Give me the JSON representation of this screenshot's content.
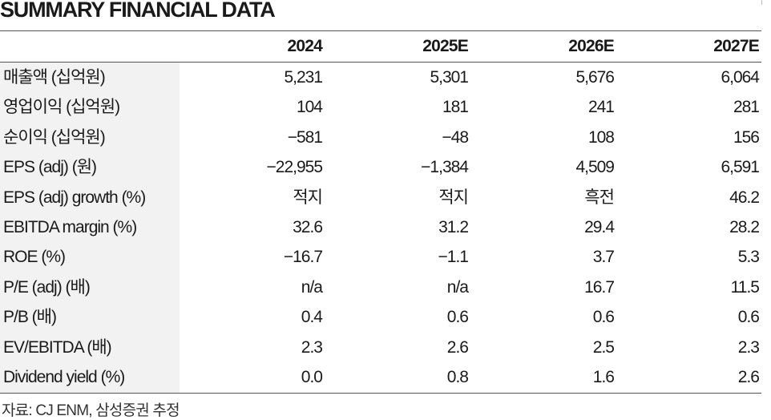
{
  "title": "SUMMARY FINANCIAL DATA",
  "columns": [
    "2024",
    "2025E",
    "2026E",
    "2027E"
  ],
  "rows": [
    {
      "label": "매출액 (십억원)",
      "values": [
        "5,231",
        "5,301",
        "5,676",
        "6,064"
      ]
    },
    {
      "label": "영업이익 (십억원)",
      "values": [
        "104",
        "181",
        "241",
        "281"
      ]
    },
    {
      "label": "순이익 (십억원)",
      "values": [
        "−581",
        "−48",
        "108",
        "156"
      ]
    },
    {
      "label": "EPS (adj) (원)",
      "values": [
        "−22,955",
        "−1,384",
        "4,509",
        "6,591"
      ]
    },
    {
      "label": "EPS (adj) growth (%)",
      "values": [
        "적지",
        "적지",
        "흑전",
        "46.2"
      ]
    },
    {
      "label": "EBITDA margin (%)",
      "values": [
        "32.6",
        "31.2",
        "29.4",
        "28.2"
      ]
    },
    {
      "label": "ROE (%)",
      "values": [
        "−16.7",
        "−1.1",
        "3.7",
        "5.3"
      ]
    },
    {
      "label": "P/E (adj) (배)",
      "values": [
        "n/a",
        "n/a",
        "16.7",
        "11.5"
      ]
    },
    {
      "label": "P/B (배)",
      "values": [
        "0.4",
        "0.6",
        "0.6",
        "0.6"
      ]
    },
    {
      "label": "EV/EBITDA (배)",
      "values": [
        "2.3",
        "2.6",
        "2.5",
        "2.3"
      ]
    },
    {
      "label": "Dividend yield (%)",
      "values": [
        "0.0",
        "0.8",
        "1.6",
        "2.6"
      ]
    }
  ],
  "source": "자료: CJ ENM, 삼성증권 추정",
  "colors": {
    "stub_background": "#f2f2f2",
    "rule": "#555555",
    "text": "#1a1a1a"
  }
}
